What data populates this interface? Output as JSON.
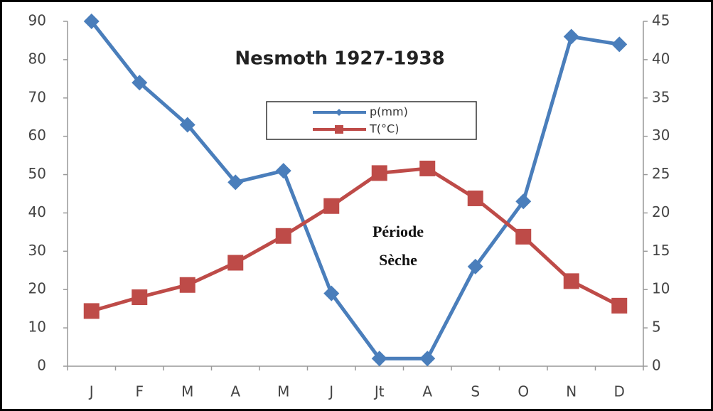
{
  "chart_data": {
    "type": "line",
    "title": "Nesmoth 1927-1938",
    "categories": [
      "J",
      "F",
      "M",
      "A",
      "M",
      "J",
      "Jt",
      "A",
      "S",
      "O",
      "N",
      "D"
    ],
    "series": [
      {
        "name": "p(mm)",
        "color": "#4a7ebb",
        "marker": "diamond",
        "values": [
          90,
          74,
          63,
          48,
          51,
          19,
          2,
          2,
          26,
          43,
          86,
          84
        ]
      },
      {
        "name": "T(°C)",
        "color": "#be4b48",
        "marker": "square",
        "axis": "y2",
        "values": [
          7.2,
          9,
          10.6,
          13.5,
          17,
          20.9,
          25.2,
          25.8,
          21.9,
          16.9,
          11.1,
          7.9
        ]
      }
    ],
    "ylim": [
      0,
      90
    ],
    "yticks": [
      0,
      10,
      20,
      30,
      40,
      50,
      60,
      70,
      80,
      90
    ],
    "y2lim": [
      0,
      45
    ],
    "y2ticks": [
      0,
      5,
      10,
      15,
      20,
      25,
      30,
      35,
      40,
      45
    ],
    "annotations": [
      "Période",
      "Sèche"
    ],
    "grid": false
  }
}
